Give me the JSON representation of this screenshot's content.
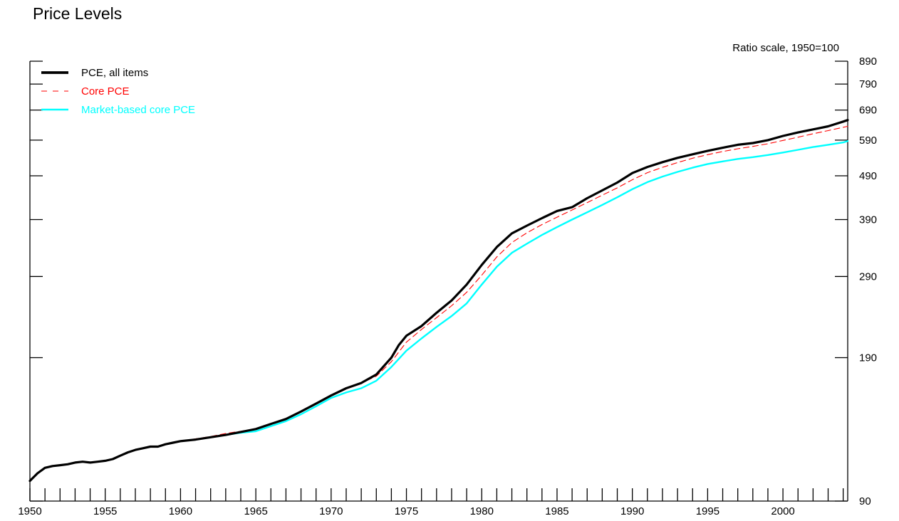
{
  "chart_data": {
    "type": "line",
    "title": "Price Levels",
    "ylabel": "Ratio scale, 1950=100",
    "y_scale": "log",
    "ylim": [
      90,
      890
    ],
    "y_ticks": [
      90,
      190,
      290,
      390,
      490,
      590,
      690,
      790,
      890
    ],
    "xlim": [
      1950,
      2004.3
    ],
    "x_tick_labels": [
      1950,
      1955,
      1960,
      1965,
      1970,
      1975,
      1980,
      1985,
      1990,
      1995,
      2000
    ],
    "grid": false,
    "legend_position": "top-left",
    "series": [
      {
        "name": "PCE, all items",
        "color": "#000000",
        "style": "solid",
        "x": [
          1950.0,
          1950.5,
          1951.0,
          1951.5,
          1952.0,
          1952.5,
          1953.0,
          1953.5,
          1954.0,
          1954.5,
          1955.0,
          1955.5,
          1956.0,
          1956.5,
          1957.0,
          1957.5,
          1958.0,
          1958.5,
          1959.0,
          1959.5,
          1960.0,
          1961.0,
          1962.0,
          1963.0,
          1964.0,
          1965.0,
          1966.0,
          1967.0,
          1968.0,
          1969.0,
          1970.0,
          1971.0,
          1972.0,
          1973.0,
          1974.0,
          1974.5,
          1975.0,
          1976.0,
          1977.0,
          1978.0,
          1979.0,
          1980.0,
          1981.0,
          1982.0,
          1983.0,
          1984.0,
          1985.0,
          1986.0,
          1987.0,
          1988.0,
          1989.0,
          1990.0,
          1991.0,
          1992.0,
          1993.0,
          1994.0,
          1995.0,
          1996.0,
          1997.0,
          1998.0,
          1999.0,
          2000.0,
          2001.0,
          2002.0,
          2003.0,
          2004.0,
          2004.3
        ],
        "values": [
          100,
          104,
          107,
          108,
          108.5,
          109,
          110,
          110.5,
          110,
          110.5,
          111,
          112,
          114,
          116,
          117.5,
          118.5,
          119.5,
          119.5,
          121,
          122,
          123,
          124,
          125.5,
          127,
          129,
          131,
          134.5,
          138,
          143.5,
          149.5,
          156,
          162,
          166.5,
          174,
          190,
          203,
          213,
          224,
          240,
          256,
          278,
          308,
          338,
          363,
          378,
          393,
          408,
          416,
          436,
          454,
          473,
          497,
          513,
          526,
          538,
          548,
          558,
          567,
          576,
          581,
          590,
          603,
          614,
          624,
          634,
          650,
          655
        ]
      },
      {
        "name": "Core PCE",
        "color": "#ff0000",
        "style": "dashed",
        "x": [
          1959.0,
          1960.0,
          1961.0,
          1962.0,
          1963.0,
          1964.0,
          1965.0,
          1966.0,
          1967.0,
          1968.0,
          1969.0,
          1970.0,
          1971.0,
          1972.0,
          1973.0,
          1974.0,
          1975.0,
          1976.0,
          1977.0,
          1978.0,
          1979.0,
          1980.0,
          1981.0,
          1982.0,
          1983.0,
          1984.0,
          1985.0,
          1986.0,
          1987.0,
          1988.0,
          1989.0,
          1990.0,
          1991.0,
          1992.0,
          1993.0,
          1994.0,
          1995.0,
          1996.0,
          1997.0,
          1998.0,
          1999.0,
          2000.0,
          2001.0,
          2002.0,
          2003.0,
          2004.0,
          2004.3
        ],
        "values": [
          121,
          123,
          124.5,
          126,
          128,
          129.5,
          131,
          134,
          137.5,
          143,
          149,
          155.5,
          161.5,
          166.5,
          172.5,
          186,
          206,
          220,
          234,
          249,
          267,
          292,
          321,
          346,
          364,
          380,
          395,
          410,
          426,
          443,
          460,
          480,
          498,
          512,
          525,
          537,
          547,
          556,
          564,
          571,
          579,
          589,
          599,
          610,
          620,
          631,
          634
        ]
      },
      {
        "name": "Market-based core PCE",
        "color": "#00ffff",
        "style": "solid",
        "x": [
          1958.7,
          1959.0,
          1960.0,
          1961.0,
          1962.0,
          1963.0,
          1964.0,
          1965.0,
          1966.0,
          1967.0,
          1968.0,
          1969.0,
          1970.0,
          1971.0,
          1972.0,
          1973.0,
          1974.0,
          1975.0,
          1976.0,
          1977.0,
          1978.0,
          1979.0,
          1980.0,
          1981.0,
          1982.0,
          1983.0,
          1984.0,
          1985.0,
          1986.0,
          1987.0,
          1988.0,
          1989.0,
          1990.0,
          1991.0,
          1992.0,
          1993.0,
          1994.0,
          1995.0,
          1996.0,
          1997.0,
          1998.0,
          1999.0,
          2000.0,
          2001.0,
          2002.0,
          2003.0,
          2004.0,
          2004.3
        ],
        "values": [
          120,
          121,
          123,
          124,
          125.5,
          127,
          128.5,
          129.5,
          133,
          136.5,
          141.5,
          147.5,
          154,
          158.5,
          162,
          168.5,
          181,
          197,
          210,
          223,
          236,
          252,
          278,
          305,
          328,
          344,
          360,
          375,
          390,
          405,
          421,
          438,
          457,
          474,
          488,
          500,
          511,
          521,
          528,
          535,
          540,
          546,
          553,
          561,
          569,
          576,
          583,
          587
        ]
      }
    ]
  }
}
